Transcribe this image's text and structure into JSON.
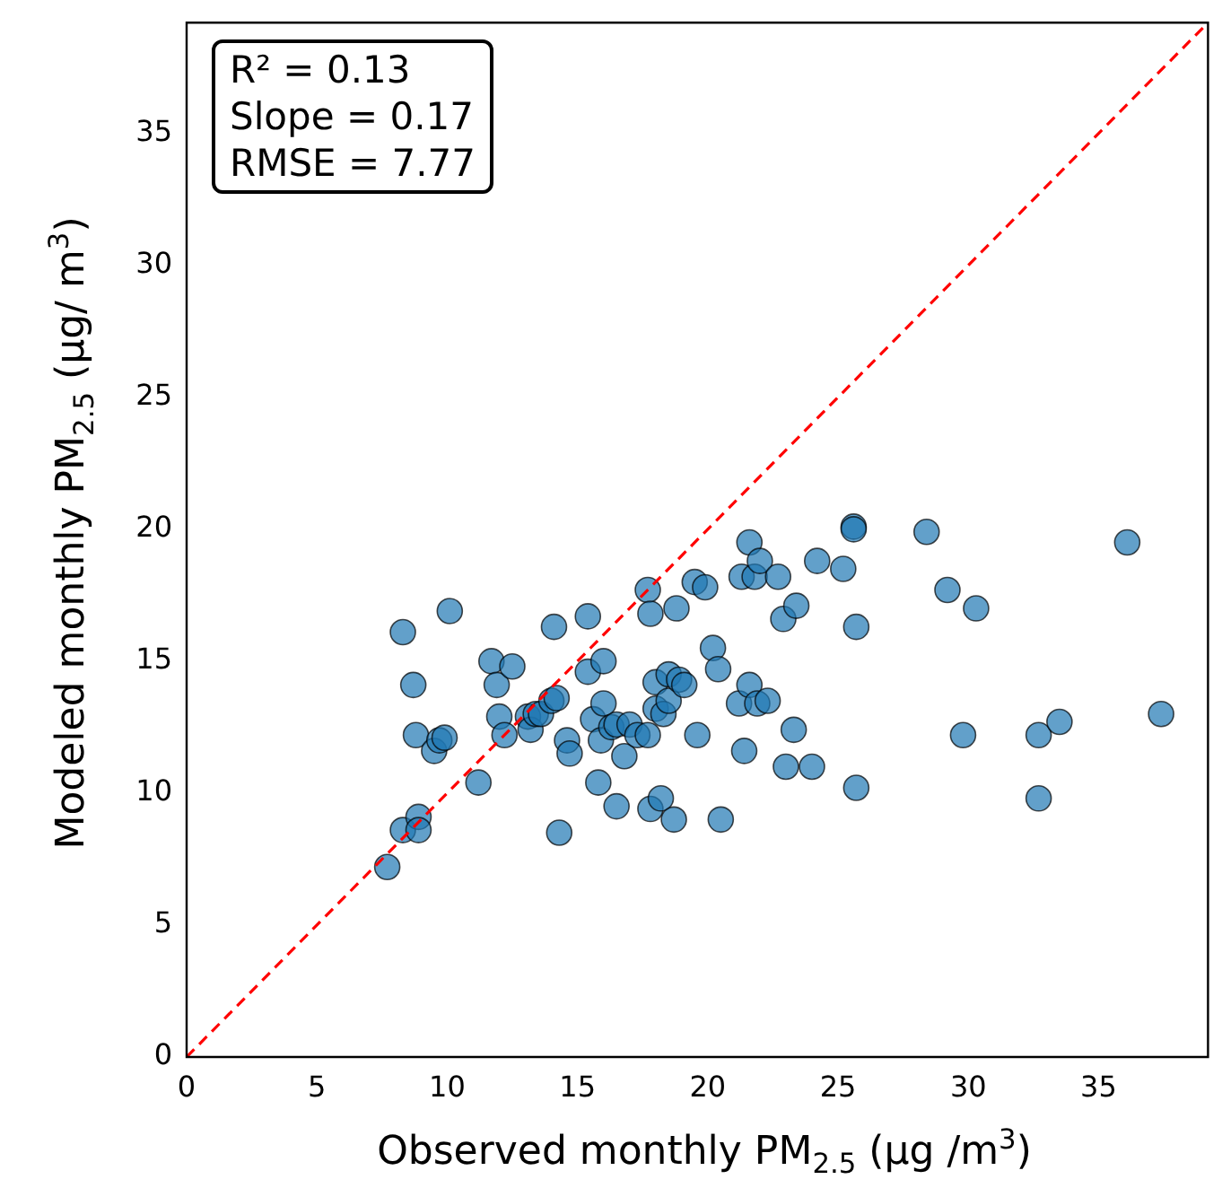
{
  "chart_data": {
    "type": "scatter",
    "xlabel": "Observed monthly PM$_{2.5}$ (µg /m$^{3}$)",
    "ylabel": "Modeled monthly PM$_{2.5}$ (µg/ m$^{3}$)",
    "annotations": [
      "R² = 0.13",
      "Slope = 0.17",
      "RMSE = 7.77"
    ],
    "xlim": [
      0,
      39.2
    ],
    "ylim": [
      0,
      39.2
    ],
    "xticks": [
      0,
      5,
      10,
      15,
      20,
      25,
      30,
      35
    ],
    "yticks": [
      0,
      5,
      10,
      15,
      20,
      25,
      30,
      35
    ],
    "grid": false,
    "legend": false,
    "marker": "circle",
    "series": [
      {
        "color": "#1f77b4",
        "x": [
          7.7,
          8.3,
          8.9,
          8.9,
          8.3,
          8.7,
          8.8,
          9.5,
          9.7,
          9.9,
          10.1,
          11.2,
          11.7,
          11.9,
          12.0,
          12.2,
          12.5,
          13.1,
          13.2,
          13.4,
          13.6,
          14.0,
          14.1,
          14.2,
          14.3,
          14.6,
          14.7,
          15.4,
          15.4,
          15.6,
          15.8,
          15.9,
          16.0,
          16.0,
          16.3,
          16.5,
          16.5,
          16.8,
          17.0,
          17.3,
          17.7,
          17.7,
          17.8,
          17.8,
          18.0,
          18.0,
          18.2,
          18.3,
          18.5,
          18.5,
          18.7,
          18.8,
          18.9,
          19.1,
          19.5,
          19.6,
          19.9,
          20.2,
          20.4,
          20.5,
          21.2,
          21.3,
          21.4,
          21.6,
          21.6,
          21.8,
          21.9,
          22.0,
          22.3,
          22.7,
          22.9,
          23.0,
          23.3,
          23.4,
          24.0,
          24.2,
          25.2,
          25.6,
          25.6,
          25.7,
          25.7,
          28.4,
          29.2,
          29.8,
          30.3,
          32.7,
          32.7,
          33.5,
          36.1,
          37.4
        ],
        "values": [
          7.2,
          8.6,
          9.1,
          8.6,
          16.1,
          14.1,
          12.2,
          11.6,
          12.0,
          12.1,
          16.9,
          10.4,
          15.0,
          14.1,
          12.9,
          12.2,
          14.8,
          12.9,
          12.4,
          13.0,
          13.0,
          13.5,
          16.3,
          13.6,
          8.5,
          12.0,
          11.5,
          16.7,
          14.6,
          12.8,
          10.4,
          12.0,
          13.4,
          15.0,
          12.5,
          9.5,
          12.6,
          11.4,
          12.6,
          12.2,
          12.2,
          17.7,
          16.8,
          9.4,
          13.2,
          14.2,
          9.8,
          13.0,
          13.5,
          14.5,
          9.0,
          17.0,
          14.3,
          14.1,
          18.0,
          12.2,
          17.8,
          15.5,
          14.7,
          9.0,
          13.4,
          18.2,
          11.6,
          14.1,
          19.5,
          18.2,
          13.4,
          18.8,
          13.5,
          18.2,
          16.6,
          11.0,
          12.4,
          17.1,
          11.0,
          18.8,
          18.5,
          20.1,
          20.0,
          10.2,
          16.3,
          19.9,
          17.7,
          12.2,
          17.0,
          12.2,
          9.8,
          12.7,
          19.5,
          13.0
        ]
      },
      {
        "type": "line",
        "color": "#ff0000",
        "line_style": "dashed",
        "marker": "none",
        "x": [
          0,
          39.2
        ],
        "values": [
          0,
          39.2
        ]
      }
    ]
  }
}
